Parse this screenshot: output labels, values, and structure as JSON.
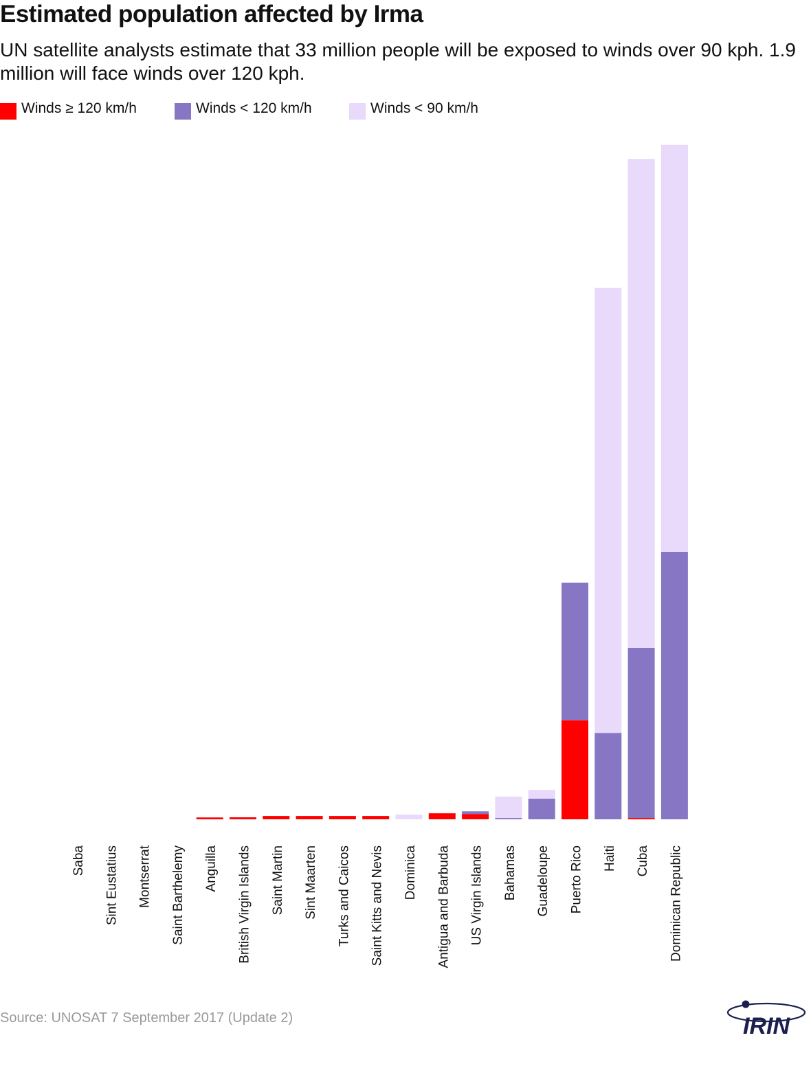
{
  "header": {
    "title": "Estimated population affected by Irma",
    "subtitle": "UN satellite analysts estimate that 33 million people will be exposed to winds over 90 kph. 1.9 million will face winds over 120 kph."
  },
  "legend": [
    {
      "label": "Winds ≥ 120 km/h",
      "color": "#ff0000"
    },
    {
      "label": "Winds < 120 km/h",
      "color": "#8676c4"
    },
    {
      "label": "Winds < 90 km/h",
      "color": "#e9d9fb"
    }
  ],
  "source": "Source: UNOSAT 7 September 2017 (Update 2)",
  "logo": {
    "text": "IRIN",
    "color": "#1a1f4e"
  },
  "chart_data": {
    "type": "bar",
    "stacked": true,
    "orientation": "vertical",
    "categories": [
      "Saba",
      "Sint Eustatius",
      "Montserrat",
      "Saint Barthelemy",
      "Anguilla",
      "British Virgin Islands",
      "Saint Martin",
      "Sint Maarten",
      "Turks and Caicos",
      "Saint Kitts and Nevis",
      "Dominica",
      "Antigua and Barbuda",
      "US Virgin Islands",
      "Bahamas",
      "Guadeloupe",
      "Puerto Rico",
      "Haiti",
      "Cuba",
      "Dominican Republic"
    ],
    "series": [
      {
        "name": "Winds ≥ 120 km/h",
        "color": "#ff0000",
        "values": [
          0,
          0,
          0,
          0,
          28000,
          30000,
          50000,
          50000,
          50000,
          50000,
          0,
          90000,
          80000,
          0,
          0,
          1480000,
          0,
          20000,
          0
        ]
      },
      {
        "name": "Winds < 120 km/h",
        "color": "#8676c4",
        "values": [
          0,
          0,
          0,
          0,
          0,
          0,
          0,
          0,
          0,
          0,
          0,
          0,
          40000,
          20000,
          310000,
          2060000,
          1290000,
          2540000,
          4000000
        ]
      },
      {
        "name": "Winds < 90 km/h",
        "color": "#e9d9fb",
        "values": [
          0,
          0,
          0,
          0,
          0,
          0,
          0,
          0,
          0,
          0,
          70000,
          0,
          0,
          320000,
          130000,
          0,
          6660000,
          7320000,
          6090000
        ]
      }
    ],
    "ylim": [
      0,
      10200000
    ],
    "grid": false,
    "legend_position": "top-left",
    "xlabel": "",
    "ylabel": ""
  }
}
